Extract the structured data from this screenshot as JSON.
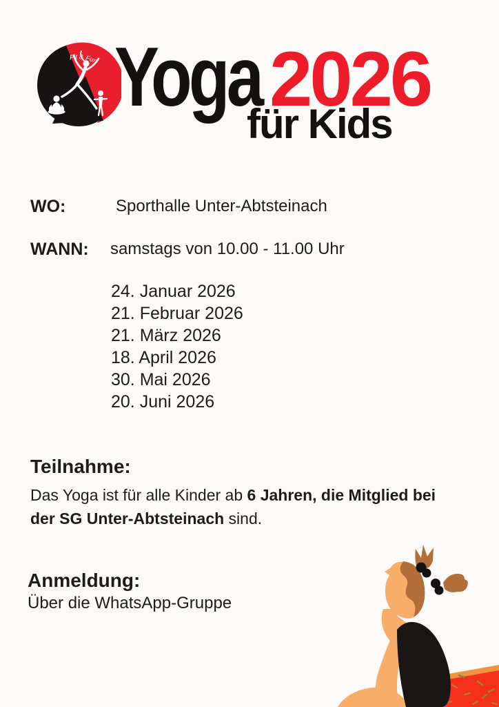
{
  "page": {
    "background": "#fcfbf9"
  },
  "colors": {
    "accent_red": "#ed1c2b",
    "text_black": "#141211",
    "logo_red": "#e8202e",
    "kid_skin": "#f6ae68",
    "kid_hair": "#b26f3a",
    "kid_pants_red": "#f5301d",
    "kid_pants_trim": "#f09340"
  },
  "header": {
    "logo_arc_text": "Fit & Fun",
    "title_black": "Yoga",
    "title_red": "2026",
    "subtitle": "für Kids"
  },
  "info": {
    "wo_label": "WO:",
    "wo_value": "Sporthalle Unter-Abtsteinach",
    "wann_label": "WANN:",
    "wann_value": "samstags von 10.00 - 11.00 Uhr",
    "dates": [
      "24. Januar 2026",
      "21. Februar 2026",
      "21. März 2026",
      "18. April 2026",
      "30. Mai 2026",
      "20. Juni 2026"
    ]
  },
  "teilnahme": {
    "heading": "Teilnahme:",
    "line1_normal": "Das Yoga ist für alle Kinder ab ",
    "line1_bold": "6 Jahren, die Mitglied bei",
    "line2_bold": "der SG Unter-Abtsteinach",
    "line2_normal": " sind."
  },
  "anmeldung": {
    "heading": "Anmeldung:",
    "text": "Über die WhatsApp-Gruppe"
  }
}
